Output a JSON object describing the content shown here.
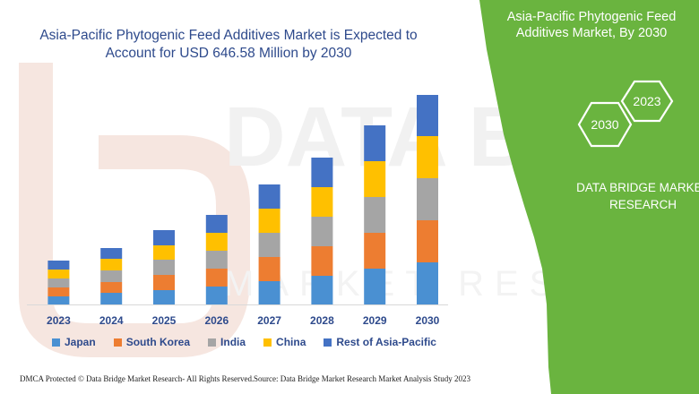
{
  "title": "Asia-Pacific Phytogenic Feed Additives Market is Expected to Account for USD 646.58 Million by 2030",
  "panel": {
    "title": "Asia-Pacific Phytogenic Feed Additives Market, By 2030",
    "hex_start": "2030",
    "hex_end": "2023",
    "brand_line1": "DATA BRIDGE MARKET",
    "brand_line2": "RESEARCH",
    "color": "#6ab43f"
  },
  "footer": {
    "left": "DMCA Protected © Data Bridge Market Research-  All Rights Reserved.",
    "right": "Source: Data Bridge Market Research  Market Analysis Study 2023"
  },
  "chart_data": {
    "type": "bar",
    "stacked": true,
    "categories": [
      "2023",
      "2024",
      "2025",
      "2026",
      "2027",
      "2028",
      "2029",
      "2030"
    ],
    "series": [
      {
        "name": "Japan",
        "color": "#4a90d2",
        "values": [
          9,
          13,
          16,
          20,
          26,
          32,
          40,
          47
        ]
      },
      {
        "name": "South Korea",
        "color": "#ed7d31",
        "values": [
          10,
          12,
          17,
          20,
          27,
          33,
          40,
          47
        ]
      },
      {
        "name": "India",
        "color": "#a5a5a5",
        "values": [
          10,
          13,
          17,
          20,
          27,
          33,
          40,
          47
        ]
      },
      {
        "name": "China",
        "color": "#ffc000",
        "values": [
          10,
          13,
          16,
          20,
          27,
          33,
          40,
          47
        ]
      },
      {
        "name": "Rest of Asia-Pacific",
        "color": "#4472c4",
        "values": [
          10,
          12,
          17,
          20,
          27,
          33,
          40,
          46
        ]
      }
    ],
    "ylim": [
      0,
      250
    ],
    "grid": false,
    "legend_position": "bottom"
  }
}
